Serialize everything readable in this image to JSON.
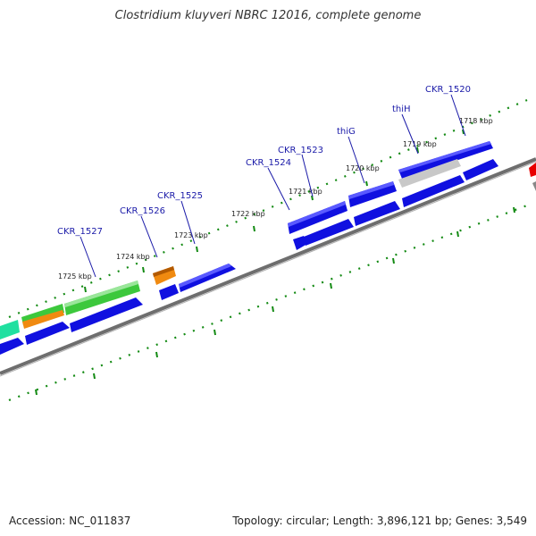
{
  "header": {
    "title": "Clostridium kluyveri NBRC 12016, complete genome"
  },
  "footer": {
    "accession": "Accession: NC_011837",
    "summary": "Topology: circular; Length: 3,896,121 bp; Genes: 3,549"
  },
  "colors": {
    "backbone": "#777777",
    "tick": "#138a13",
    "gene_blue": "#1010e0",
    "gene_green": "#3cc83c",
    "gene_orange": "#f08a10",
    "gene_teal": "#20e0a0",
    "gene_grey": "#c8c8c8",
    "gene_red": "#e80000",
    "label_blue": "#1a1aa8"
  },
  "kbp_labels": [
    "1718 kbp",
    "1719 kbp",
    "1720 kbp",
    "1721 kbp",
    "1722 kbp",
    "1723 kbp",
    "1724 kbp",
    "1725 kbp"
  ],
  "gene_labels": [
    "CKR_1520",
    "thiH",
    "thiG",
    "CKR_1523",
    "CKR_1524",
    "CKR_1525",
    "CKR_1526",
    "CKR_1527"
  ]
}
